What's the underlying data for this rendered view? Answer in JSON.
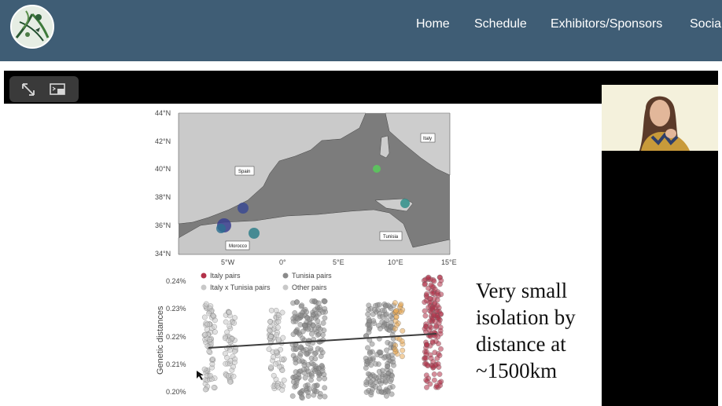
{
  "nav": {
    "links": [
      "Home",
      "Schedule",
      "Exhibitors/Sponsors",
      "Social"
    ]
  },
  "player": {
    "controls": [
      "expand-icon",
      "picture-in-picture-icon"
    ]
  },
  "slide": {
    "map": {
      "lat_labels": [
        "44°N",
        "42°N",
        "40°N",
        "38°N",
        "36°N",
        "34°N"
      ],
      "lon_labels": [
        "5°W",
        "0°",
        "5°E",
        "10°E",
        "15°E"
      ],
      "region_labels": {
        "italy": "Italy",
        "spain": "Spain",
        "morocco": "Morocco",
        "tunisia": "Tunisia"
      }
    },
    "plot": {
      "ylabel": "Genetic distances",
      "y_ticks": [
        "0.24%",
        "0.23%",
        "0.22%",
        "0.21%",
        "0.20%"
      ],
      "legend": [
        "Italy pairs",
        "Tunisia pairs",
        "Italy x Tunisia pairs",
        "Other pairs"
      ],
      "colors": {
        "italy": "#b33149",
        "tunisia": "#8a8a8a",
        "italy_x_tunisia": "#e7a958",
        "other": "#c8c8c8"
      }
    },
    "headline": "Very small isolation by distance at ~1500km"
  }
}
